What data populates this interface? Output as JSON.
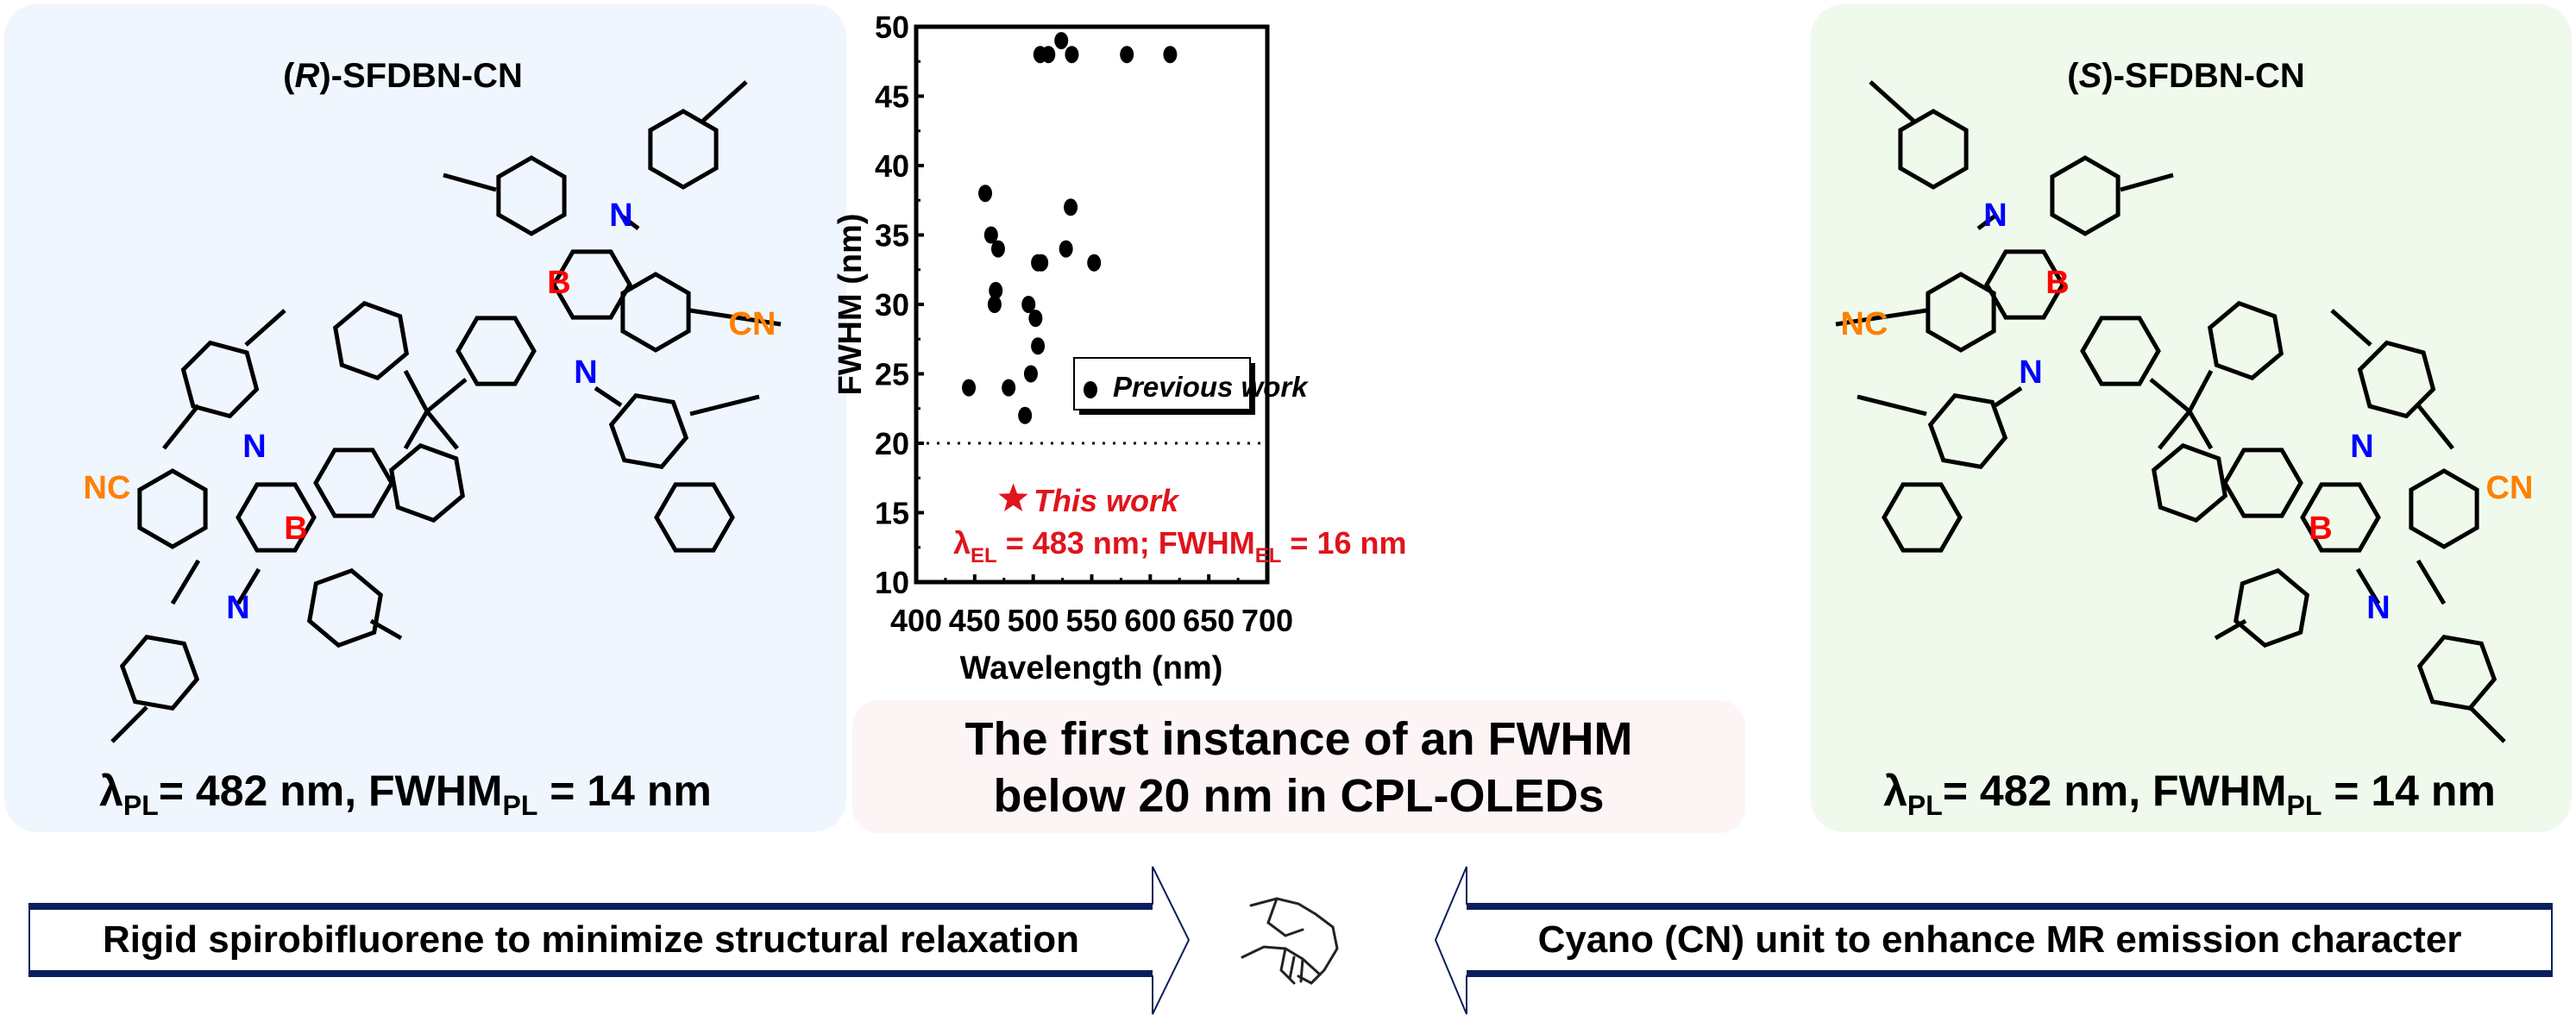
{
  "left_panel": {
    "title_open": "(",
    "title_italic": "R",
    "title_rest": ")-SFDBN-CN",
    "props": {
      "lambda": "λ",
      "sub1": "PL",
      "mid": "= 482 nm, FWHM",
      "sub2": "PL",
      "end": " = 14 nm"
    },
    "atoms": {
      "n": "N",
      "b": "B",
      "cn": "CN",
      "nc": "NC"
    }
  },
  "right_panel": {
    "title_open": "(",
    "title_italic": "S",
    "title_rest": ")-SFDBN-CN",
    "props": {
      "lambda": "λ",
      "sub1": "PL",
      "mid": "= 482 nm, FWHM",
      "sub2": "PL",
      "end": " = 14 nm"
    },
    "atoms": {
      "n": "N",
      "b": "B",
      "cn": "CN",
      "nc": "NC"
    }
  },
  "center_box": {
    "line1": "The first instance of an FWHM",
    "line2": "below 20 nm in CPL-OLEDs"
  },
  "arrows": {
    "left_label": "Rigid spirobifluorene to minimize structural relaxation",
    "right_label": "Cyano (CN) unit to enhance MR emission character",
    "icon": "handshake-icon",
    "color": "#0a1f5c"
  },
  "colors": {
    "boron": "#ff0000",
    "nitrogen": "#0000ff",
    "cyano": "#ff8000",
    "this_work": "#e0141c"
  },
  "chart_data": {
    "type": "scatter",
    "xlabel": "Wavelength (nm)",
    "ylabel": "FWHM (nm)",
    "xlim": [
      400,
      700
    ],
    "ylim": [
      10,
      50
    ],
    "xticks": [
      400,
      450,
      500,
      550,
      600,
      650,
      700
    ],
    "yticks": [
      10,
      15,
      20,
      25,
      30,
      35,
      40,
      45,
      50
    ],
    "grid": false,
    "reference_line": {
      "y": 20,
      "style": "dotted"
    },
    "legend": {
      "position": "center-right",
      "entries": [
        "Previous work"
      ]
    },
    "series": [
      {
        "name": "Previous work",
        "marker": "circle",
        "color": "#000000",
        "points": [
          [
            445,
            24
          ],
          [
            459,
            38
          ],
          [
            464,
            35
          ],
          [
            467,
            30
          ],
          [
            468,
            31
          ],
          [
            470,
            34
          ],
          [
            479,
            24
          ],
          [
            493,
            22
          ],
          [
            496,
            30
          ],
          [
            498,
            25
          ],
          [
            502,
            29
          ],
          [
            504,
            27
          ],
          [
            504,
            33
          ],
          [
            507,
            33
          ],
          [
            506,
            48
          ],
          [
            513,
            48
          ],
          [
            524,
            49
          ],
          [
            533,
            48
          ],
          [
            528,
            34
          ],
          [
            532,
            37
          ],
          [
            552,
            33
          ],
          [
            580,
            48
          ],
          [
            617,
            48
          ]
        ]
      },
      {
        "name": "This work",
        "marker": "star",
        "color": "#e0141c",
        "points": [
          [
            483,
            16
          ]
        ]
      }
    ],
    "annotation": {
      "label": "This work",
      "lambda": "λ",
      "sub": "EL",
      "text1": " = 483 nm; FWHM",
      "text2": " = 16 nm"
    }
  }
}
